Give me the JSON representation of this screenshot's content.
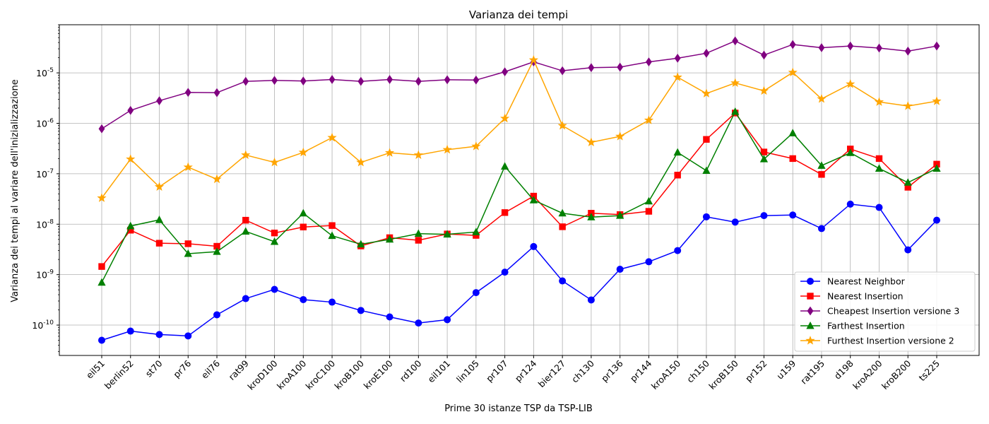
{
  "chart_data": {
    "type": "line",
    "title": "Varianza dei tempi",
    "xlabel": "Prime 30 istanze TSP da TSP-LIB",
    "ylabel": "Varianza dei tempi al variare dell'inizializzazione",
    "yscale": "log",
    "ylim": [
      2.5e-11,
      9e-05
    ],
    "ytick_labels": [
      "10^{-10}",
      "10^{-9}",
      "10^{-8}",
      "10^{-7}",
      "10^{-6}",
      "10^{-5}"
    ],
    "grid": true,
    "legend_position": "lower-right",
    "categories": [
      "eil51",
      "berlin52",
      "st70",
      "pr76",
      "eil76",
      "rat99",
      "kroD100",
      "kroA100",
      "kroC100",
      "kroB100",
      "kroE100",
      "rd100",
      "eil101",
      "lin105",
      "pr107",
      "pr124",
      "bier127",
      "ch130",
      "pr136",
      "pr144",
      "kroA150",
      "ch150",
      "kroB150",
      "pr152",
      "u159",
      "rat195",
      "d198",
      "kroA200",
      "kroB200",
      "ts225"
    ],
    "series": [
      {
        "name": "Nearest Neighbor",
        "color": "#0000ff",
        "marker": "circle",
        "values": [
          5e-11,
          7.6e-11,
          6.5e-11,
          6.1e-11,
          1.6e-10,
          3.35e-10,
          5.1e-10,
          3.2e-10,
          2.85e-10,
          1.95e-10,
          1.45e-10,
          1.1e-10,
          1.28e-10,
          4.4e-10,
          1.12e-09,
          3.6e-09,
          7.5e-10,
          3.15e-10,
          1.28e-09,
          1.8e-09,
          3e-09,
          1.4e-08,
          1.1e-08,
          1.48e-08,
          1.52e-08,
          8.2e-09,
          2.5e-08,
          2.15e-08,
          3.1e-09,
          1.2e-08
        ]
      },
      {
        "name": "Nearest Insertion",
        "color": "#ff0000",
        "marker": "square",
        "values": [
          1.45e-09,
          7.6e-09,
          4.2e-09,
          4.1e-09,
          3.65e-09,
          1.2e-08,
          6.7e-09,
          8.8e-09,
          9.4e-09,
          3.7e-09,
          5.4e-09,
          4.8e-09,
          6.4e-09,
          6e-09,
          1.7e-08,
          3.6e-08,
          8.9e-09,
          1.65e-08,
          1.55e-08,
          1.8e-08,
          9.4e-08,
          4.8e-07,
          1.6e-06,
          2.7e-07,
          2e-07,
          9.7e-08,
          3.1e-07,
          2e-07,
          5.4e-08,
          1.55e-07
        ]
      },
      {
        "name": "Cheapest Insertion versione 3",
        "color": "#800080",
        "marker": "diamond",
        "values": [
          7.8e-07,
          1.8e-06,
          2.8e-06,
          4.1e-06,
          4.05e-06,
          6.8e-06,
          7.1e-06,
          6.9e-06,
          7.4e-06,
          6.8e-06,
          7.4e-06,
          6.8e-06,
          7.3e-06,
          7.2e-06,
          1.05e-05,
          1.65e-05,
          1.1e-05,
          1.27e-05,
          1.3e-05,
          1.65e-05,
          1.95e-05,
          2.45e-05,
          4.3e-05,
          2.25e-05,
          3.65e-05,
          3.15e-05,
          3.4e-05,
          3.1e-05,
          2.7e-05,
          3.4e-05
        ]
      },
      {
        "name": "Farthest Insertion",
        "color": "#008000",
        "marker": "triangle",
        "values": [
          7e-10,
          9.2e-09,
          1.22e-08,
          2.6e-09,
          2.85e-09,
          7.2e-09,
          4.5e-09,
          1.65e-08,
          5.9e-09,
          4e-09,
          5e-09,
          6.5e-09,
          6.3e-09,
          7e-09,
          1.4e-07,
          3e-08,
          1.65e-08,
          1.38e-08,
          1.48e-08,
          2.85e-08,
          2.65e-07,
          1.15e-07,
          1.7e-06,
          1.95e-07,
          6.4e-07,
          1.45e-07,
          2.6e-07,
          1.27e-07,
          6.7e-08,
          1.27e-07
        ]
      },
      {
        "name": "Furthest Insertion versione 2",
        "color": "#ffa500",
        "marker": "star",
        "values": [
          3.3e-08,
          1.95e-07,
          5.5e-08,
          1.35e-07,
          7.8e-08,
          2.35e-07,
          1.68e-07,
          2.65e-07,
          5.2e-07,
          1.68e-07,
          2.6e-07,
          2.35e-07,
          3e-07,
          3.5e-07,
          1.25e-06,
          1.8e-05,
          9e-07,
          4.2e-07,
          5.5e-07,
          1.15e-06,
          8.2e-06,
          3.9e-06,
          6.3e-06,
          4.4e-06,
          1.02e-05,
          3.05e-06,
          6e-06,
          2.65e-06,
          2.2e-06,
          2.75e-06
        ]
      }
    ]
  }
}
